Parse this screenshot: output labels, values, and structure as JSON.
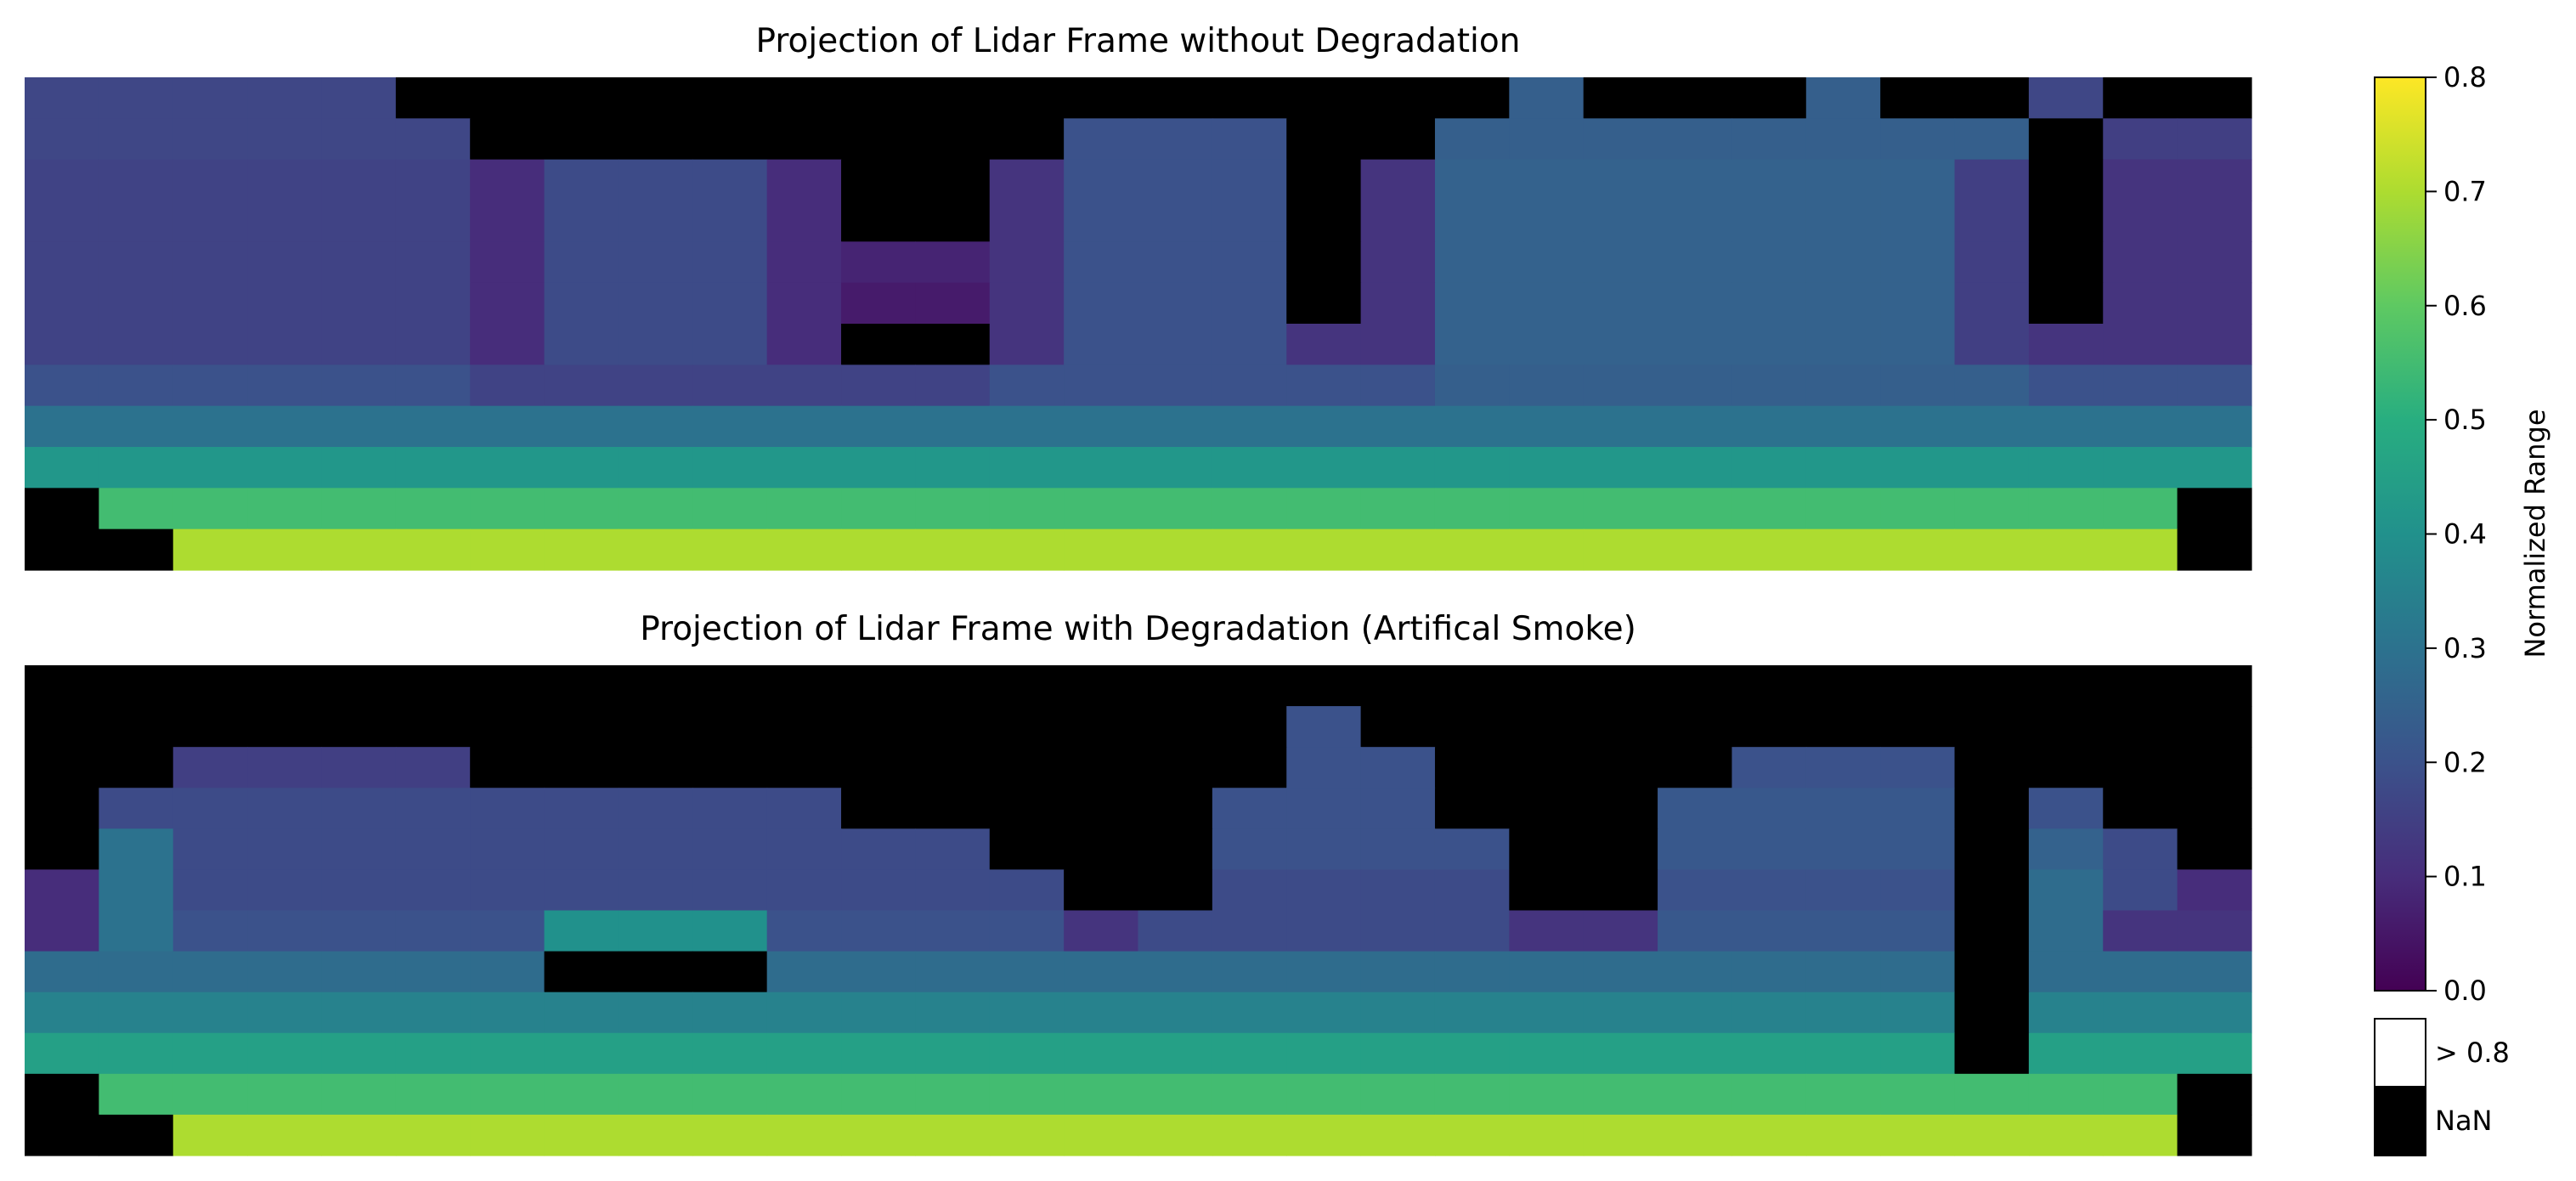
{
  "chart_data": [
    {
      "type": "heatmap",
      "title": "Projection of Lidar Frame without Degradation",
      "colormap": "viridis",
      "vmin": 0.0,
      "vmax": 0.8,
      "values": [
        [
          0.17,
          0.17,
          0.17,
          0.17,
          0.17,
          null,
          null,
          null,
          null,
          null,
          null,
          null,
          null,
          null,
          null,
          null,
          null,
          null,
          null,
          null,
          0.24,
          null,
          null,
          null,
          0.24,
          null,
          null,
          0.17,
          null,
          null
        ],
        [
          0.17,
          0.17,
          0.17,
          0.17,
          0.17,
          0.17,
          null,
          null,
          null,
          null,
          null,
          null,
          null,
          null,
          0.2,
          0.2,
          0.2,
          null,
          null,
          0.24,
          0.24,
          0.24,
          0.24,
          0.24,
          0.24,
          0.24,
          0.24,
          null,
          0.15,
          0.15
        ],
        [
          0.16,
          0.16,
          0.16,
          0.16,
          0.16,
          0.16,
          0.1,
          0.18,
          0.18,
          0.18,
          0.1,
          null,
          null,
          0.12,
          0.2,
          0.2,
          0.2,
          null,
          0.12,
          0.25,
          0.25,
          0.25,
          0.25,
          0.25,
          0.25,
          0.25,
          0.15,
          null,
          0.12,
          0.12
        ],
        [
          0.16,
          0.16,
          0.16,
          0.16,
          0.16,
          0.16,
          0.1,
          0.18,
          0.18,
          0.18,
          0.1,
          null,
          null,
          0.12,
          0.2,
          0.2,
          0.2,
          null,
          0.12,
          0.25,
          0.25,
          0.25,
          0.25,
          0.25,
          0.25,
          0.25,
          0.15,
          null,
          0.12,
          0.12
        ],
        [
          0.16,
          0.16,
          0.16,
          0.16,
          0.16,
          0.16,
          0.1,
          0.18,
          0.18,
          0.18,
          0.1,
          0.08,
          0.08,
          0.12,
          0.2,
          0.2,
          0.2,
          null,
          0.12,
          0.25,
          0.25,
          0.25,
          0.25,
          0.25,
          0.25,
          0.25,
          0.15,
          null,
          0.12,
          0.12
        ],
        [
          0.16,
          0.16,
          0.16,
          0.16,
          0.16,
          0.16,
          0.1,
          0.18,
          0.18,
          0.18,
          0.1,
          0.06,
          0.06,
          0.12,
          0.2,
          0.2,
          0.2,
          null,
          0.12,
          0.25,
          0.25,
          0.25,
          0.25,
          0.25,
          0.25,
          0.25,
          0.15,
          null,
          0.12,
          0.12
        ],
        [
          0.16,
          0.16,
          0.16,
          0.16,
          0.16,
          0.16,
          0.1,
          0.18,
          0.18,
          0.18,
          0.1,
          null,
          null,
          0.12,
          0.2,
          0.2,
          0.2,
          0.12,
          0.12,
          0.25,
          0.25,
          0.25,
          0.25,
          0.25,
          0.25,
          0.25,
          0.15,
          0.12,
          0.12,
          0.12
        ],
        [
          0.2,
          0.2,
          0.2,
          0.2,
          0.2,
          0.2,
          0.16,
          0.16,
          0.16,
          0.16,
          0.16,
          0.16,
          0.16,
          0.2,
          0.2,
          0.2,
          0.2,
          0.2,
          0.2,
          0.24,
          0.24,
          0.24,
          0.24,
          0.24,
          0.24,
          0.24,
          0.24,
          0.2,
          0.2,
          0.2
        ],
        [
          0.3,
          0.3,
          0.3,
          0.3,
          0.3,
          0.3,
          0.3,
          0.3,
          0.3,
          0.3,
          0.3,
          0.3,
          0.3,
          0.3,
          0.3,
          0.3,
          0.3,
          0.3,
          0.3,
          0.3,
          0.3,
          0.3,
          0.3,
          0.3,
          0.3,
          0.3,
          0.3,
          0.3,
          0.3,
          0.3
        ],
        [
          0.42,
          0.42,
          0.42,
          0.42,
          0.42,
          0.42,
          0.42,
          0.42,
          0.42,
          0.42,
          0.42,
          0.42,
          0.42,
          0.42,
          0.42,
          0.42,
          0.42,
          0.42,
          0.42,
          0.42,
          0.42,
          0.42,
          0.42,
          0.42,
          0.42,
          0.42,
          0.42,
          0.42,
          0.42,
          0.42
        ],
        [
          null,
          0.55,
          0.55,
          0.55,
          0.55,
          0.55,
          0.55,
          0.55,
          0.55,
          0.55,
          0.55,
          0.55,
          0.55,
          0.55,
          0.55,
          0.55,
          0.55,
          0.55,
          0.55,
          0.55,
          0.55,
          0.55,
          0.55,
          0.55,
          0.55,
          0.55,
          0.55,
          0.55,
          0.55,
          null
        ],
        [
          null,
          null,
          0.7,
          0.7,
          0.7,
          0.7,
          0.7,
          0.7,
          0.7,
          0.7,
          0.7,
          0.7,
          0.7,
          0.7,
          0.7,
          0.7,
          0.7,
          0.7,
          0.7,
          0.7,
          0.7,
          0.7,
          0.7,
          0.7,
          0.7,
          0.7,
          0.7,
          0.7,
          0.7,
          null
        ]
      ]
    },
    {
      "type": "heatmap",
      "title": "Projection of Lidar Frame with Degradation (Artifical Smoke)",
      "colormap": "viridis",
      "vmin": 0.0,
      "vmax": 0.8,
      "values": [
        [
          null,
          null,
          null,
          null,
          null,
          null,
          null,
          null,
          null,
          null,
          null,
          null,
          null,
          null,
          null,
          null,
          null,
          null,
          null,
          null,
          null,
          null,
          null,
          null,
          null,
          null,
          null,
          null,
          null,
          null
        ],
        [
          null,
          null,
          null,
          null,
          null,
          null,
          null,
          null,
          null,
          null,
          null,
          null,
          null,
          null,
          null,
          null,
          null,
          0.2,
          null,
          null,
          null,
          null,
          null,
          null,
          null,
          null,
          null,
          null,
          null,
          null
        ],
        [
          null,
          null,
          0.15,
          0.15,
          0.15,
          0.15,
          null,
          null,
          null,
          null,
          null,
          null,
          null,
          null,
          null,
          null,
          null,
          0.2,
          0.2,
          null,
          null,
          null,
          null,
          0.2,
          0.2,
          0.2,
          null,
          null,
          null,
          null
        ],
        [
          null,
          0.18,
          0.18,
          0.18,
          0.18,
          0.18,
          0.18,
          0.18,
          0.18,
          0.18,
          0.18,
          null,
          null,
          null,
          null,
          null,
          0.2,
          0.2,
          0.2,
          null,
          null,
          null,
          0.22,
          0.22,
          0.22,
          0.22,
          null,
          0.2,
          null,
          null
        ],
        [
          null,
          0.3,
          0.18,
          0.18,
          0.18,
          0.18,
          0.18,
          0.18,
          0.18,
          0.18,
          0.18,
          0.18,
          0.18,
          null,
          null,
          null,
          0.2,
          0.2,
          0.2,
          0.2,
          null,
          null,
          0.22,
          0.22,
          0.22,
          0.22,
          null,
          0.25,
          0.18,
          null
        ],
        [
          0.1,
          0.3,
          0.18,
          0.18,
          0.18,
          0.18,
          0.18,
          0.18,
          0.18,
          0.18,
          0.18,
          0.18,
          0.18,
          0.18,
          null,
          null,
          0.18,
          0.18,
          0.18,
          0.18,
          null,
          null,
          0.2,
          0.2,
          0.2,
          0.2,
          null,
          0.28,
          0.18,
          0.1
        ],
        [
          0.1,
          0.3,
          0.2,
          0.2,
          0.2,
          0.2,
          0.2,
          0.4,
          0.4,
          0.4,
          0.2,
          0.2,
          0.2,
          0.2,
          0.12,
          0.18,
          0.18,
          0.18,
          0.18,
          0.18,
          0.12,
          0.12,
          0.22,
          0.22,
          0.22,
          0.22,
          null,
          0.28,
          0.12,
          0.12
        ],
        [
          0.28,
          0.28,
          0.28,
          0.28,
          0.28,
          0.28,
          0.28,
          null,
          null,
          null,
          0.28,
          0.28,
          0.28,
          0.28,
          0.28,
          0.28,
          0.28,
          0.28,
          0.28,
          0.28,
          0.28,
          0.28,
          0.28,
          0.28,
          0.28,
          0.28,
          null,
          0.28,
          0.28,
          0.28
        ],
        [
          0.35,
          0.35,
          0.35,
          0.35,
          0.35,
          0.35,
          0.35,
          0.35,
          0.35,
          0.35,
          0.35,
          0.35,
          0.35,
          0.35,
          0.35,
          0.35,
          0.35,
          0.35,
          0.35,
          0.35,
          0.35,
          0.35,
          0.35,
          0.35,
          0.35,
          0.35,
          null,
          0.35,
          0.35,
          0.35
        ],
        [
          0.45,
          0.45,
          0.45,
          0.45,
          0.45,
          0.45,
          0.45,
          0.45,
          0.45,
          0.45,
          0.45,
          0.45,
          0.45,
          0.45,
          0.45,
          0.45,
          0.45,
          0.45,
          0.45,
          0.45,
          0.45,
          0.45,
          0.45,
          0.45,
          0.45,
          0.45,
          null,
          0.45,
          0.45,
          0.45
        ],
        [
          null,
          0.55,
          0.55,
          0.55,
          0.55,
          0.55,
          0.55,
          0.55,
          0.55,
          0.55,
          0.55,
          0.55,
          0.55,
          0.55,
          0.55,
          0.55,
          0.55,
          0.55,
          0.55,
          0.55,
          0.55,
          0.55,
          0.55,
          0.55,
          0.55,
          0.55,
          0.55,
          0.55,
          0.55,
          null
        ],
        [
          null,
          null,
          0.7,
          0.7,
          0.7,
          0.7,
          0.7,
          0.7,
          0.7,
          0.7,
          0.7,
          0.7,
          0.7,
          0.7,
          0.7,
          0.7,
          0.7,
          0.7,
          0.7,
          0.7,
          0.7,
          0.7,
          0.7,
          0.7,
          0.7,
          0.7,
          0.7,
          0.7,
          0.7,
          null
        ]
      ]
    }
  ],
  "colorbar": {
    "label": "Normalized Range",
    "ticks": [
      "0.0",
      "0.1",
      "0.2",
      "0.3",
      "0.4",
      "0.5",
      "0.6",
      "0.7",
      "0.8"
    ],
    "min": 0.0,
    "max": 0.8,
    "extensions": [
      {
        "label": "> 0.8",
        "color": "#ffffff"
      },
      {
        "label": "NaN",
        "color": "#000000"
      }
    ]
  }
}
